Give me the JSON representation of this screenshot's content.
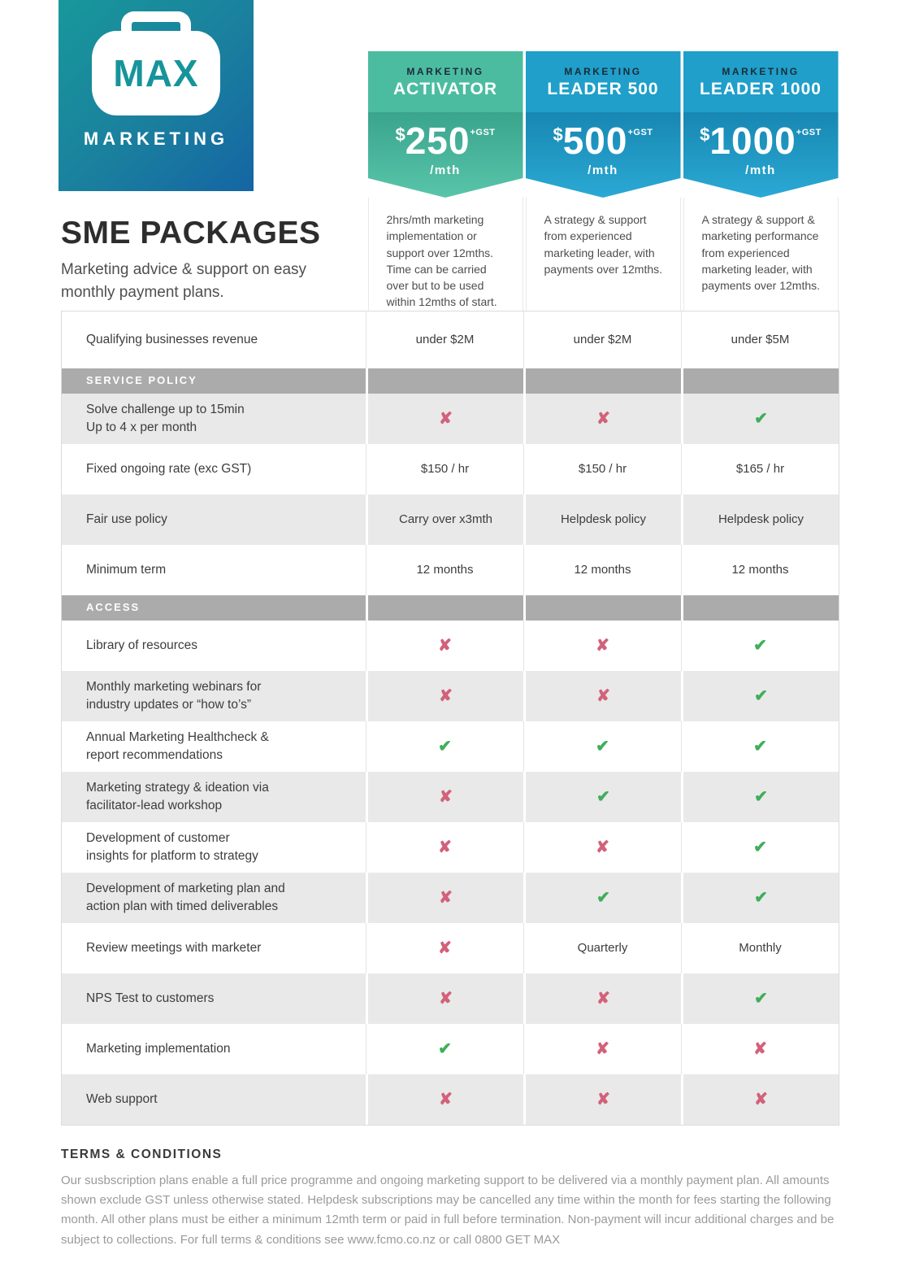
{
  "logo": {
    "text": "MAX",
    "subtext": "MARKETING"
  },
  "header": {
    "title": "SME PACKAGES",
    "subtitle": "Marketing advice & support on easy monthly payment plans."
  },
  "colors": {
    "brand_gradient_start": "#18989b",
    "brand_gradient_end": "#1565a3",
    "activator_band": "#4cbca1",
    "activator_gradient": [
      "#3aa48d",
      "#58c5aa"
    ],
    "leader_band": "#1f9fca",
    "leader_gradient": [
      "#1787b2",
      "#2aa9d4"
    ],
    "section_bar": "#ababab",
    "row_shaded": "#e9e9e9",
    "check": "#3fae5a",
    "cross": "#d2617a"
  },
  "icons": {
    "check_glyph": "✔",
    "cross_glyph": "✘"
  },
  "plans": [
    {
      "category": "MARKETING",
      "name": "ACTIVATOR",
      "currency": "$",
      "price": "250",
      "gst": "+GST",
      "per": "/mth",
      "description": "2hrs/mth marketing implementation or support over 12mths. Time can be carried over but to be used within 12mths of start."
    },
    {
      "category": "MARKETING",
      "name": "LEADER 500",
      "currency": "$",
      "price": "500",
      "gst": "+GST",
      "per": "/mth",
      "description": "A strategy & support from experienced marketing leader, with payments over 12mths."
    },
    {
      "category": "MARKETING",
      "name": "LEADER 1000",
      "currency": "$",
      "price": "1000",
      "gst": "+GST",
      "per": "/mth",
      "description": "A strategy & support & marketing performance from experienced marketing leader, with payments over 12mths."
    }
  ],
  "table": {
    "rows": [
      {
        "type": "data",
        "label": "Qualifying businesses  revenue",
        "values": [
          "under $2M",
          "under $2M",
          "under $5M"
        ]
      },
      {
        "type": "section",
        "label": "SERVICE POLICY",
        "values": [
          "",
          "",
          ""
        ]
      },
      {
        "type": "data",
        "label": "Solve challenge up to 15min\nUp to 4 x per month",
        "values": [
          "cross",
          "cross",
          "check"
        ]
      },
      {
        "type": "data",
        "label": "Fixed ongoing rate (exc GST)",
        "values": [
          "$150 / hr",
          "$150 / hr",
          "$165 / hr"
        ]
      },
      {
        "type": "data",
        "label": "Fair use policy",
        "values": [
          "Carry over x3mth",
          "Helpdesk policy",
          "Helpdesk policy"
        ]
      },
      {
        "type": "data",
        "label": "Minimum term",
        "values": [
          "12 months",
          "12 months",
          "12 months"
        ]
      },
      {
        "type": "section",
        "label": "ACCESS",
        "values": [
          "",
          "",
          ""
        ]
      },
      {
        "type": "data",
        "label": "Library of resources",
        "values": [
          "cross",
          "cross",
          "check"
        ]
      },
      {
        "type": "data",
        "label": "Monthly marketing webinars for\nindustry updates or “how to’s”",
        "values": [
          "cross",
          "cross",
          "check"
        ]
      },
      {
        "type": "data",
        "label": "Annual Marketing Healthcheck &\nreport recommendations",
        "values": [
          "check",
          "check",
          "check"
        ]
      },
      {
        "type": "data",
        "label": "Marketing strategy & ideation via\nfacilitator-lead workshop",
        "values": [
          "cross",
          "check",
          "check"
        ]
      },
      {
        "type": "data",
        "label": "Development of customer\ninsights for platform to strategy",
        "values": [
          "cross",
          "cross",
          "check"
        ]
      },
      {
        "type": "data",
        "label": "Development of marketing plan and\naction plan with timed deliverables",
        "values": [
          "cross",
          "check",
          "check"
        ]
      },
      {
        "type": "data",
        "label": "Review meetings with marketer",
        "values": [
          "cross",
          "Quarterly",
          "Monthly"
        ]
      },
      {
        "type": "data",
        "label": "NPS Test to customers",
        "values": [
          "cross",
          "cross",
          "check"
        ]
      },
      {
        "type": "data",
        "label": "Marketing implementation",
        "values": [
          "check",
          "cross",
          "cross"
        ]
      },
      {
        "type": "data",
        "label": "Web support",
        "values": [
          "cross",
          "cross",
          "cross"
        ]
      }
    ]
  },
  "terms": {
    "heading": "TERMS & CONDITIONS",
    "body": "Our susbscription plans enable a full price programme and ongoing marketing support to be delivered via a monthly payment plan. All amounts shown exclude GST unless otherwise stated.  Helpdesk subscriptions may be cancelled any time within the month for fees starting the following month.  All other plans must be either a minimum 12mth term or paid in full before termination. Non-payment will incur additional charges and be subject to collections. For full terms & conditions see www.fcmo.co.nz or call 0800 GET MAX"
  }
}
